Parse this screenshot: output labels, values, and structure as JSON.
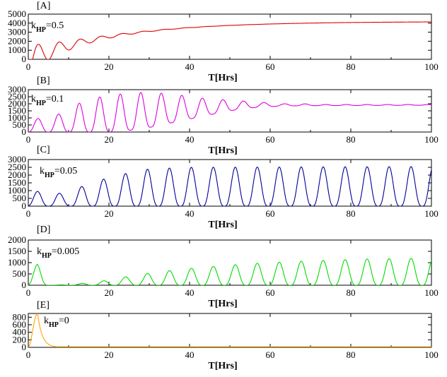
{
  "colors": {
    "A": "#dd0000",
    "B": "#dd00dd",
    "C": "#000099",
    "D": "#00dd00",
    "E": "#ffa500",
    "axis": "#000000",
    "background": "#ffffff"
  },
  "xlabel": "T[Hrs]",
  "chart_data": [
    {
      "type": "line",
      "panel_label": "[A]",
      "k_main": "k",
      "k_sub": "HP",
      "k_value": "=0.5",
      "color": "#dd0000",
      "xlim": [
        0,
        100
      ],
      "ylim": [
        0,
        5000
      ],
      "xticks": [
        0,
        20,
        40,
        60,
        80,
        100
      ],
      "yticks": [
        0,
        1000,
        2000,
        3000,
        4000,
        5000
      ],
      "xlabel": "T[Hrs]",
      "model": {
        "kind": "damped",
        "period": 5.2,
        "phase": 2.5,
        "ss": 4400,
        "ampl": 3400,
        "tdamp": 4.5,
        "rise": 22,
        "tmax": 100,
        "envdecay": 0
      },
      "series": [
        {
          "x": [
            0,
            2.5,
            4.5,
            7.5,
            10,
            13,
            16,
            20,
            30,
            40,
            60,
            80,
            100
          ],
          "y": [
            0,
            1200,
            300,
            2700,
            900,
            3300,
            2400,
            3500,
            4000,
            4250,
            4400,
            4450,
            4450
          ]
        }
      ]
    },
    {
      "type": "line",
      "panel_label": "[B]",
      "k_main": "k",
      "k_sub": "HP",
      "k_value": "=0.1",
      "color": "#dd00dd",
      "xlim": [
        0,
        100
      ],
      "ylim": [
        0,
        3000
      ],
      "xticks": [
        0,
        20,
        40,
        60,
        80,
        100
      ],
      "yticks": [
        0,
        500,
        1000,
        1500,
        2000,
        2500,
        3000
      ],
      "xlabel": "T[Hrs]",
      "model": {
        "kind": "osc",
        "period": 5.1,
        "phase": 2.4,
        "base": 0,
        "growFrom": 1,
        "peaks": [
          [
            2.4,
            950
          ],
          [
            8,
            1300
          ],
          [
            13,
            2100
          ],
          [
            18,
            2500
          ],
          [
            23,
            2700
          ],
          [
            28,
            2800
          ],
          [
            33,
            2750
          ],
          [
            38,
            2600
          ],
          [
            43,
            2400
          ],
          [
            48,
            2300
          ],
          [
            53,
            2200
          ],
          [
            58,
            2100
          ],
          [
            63,
            2000
          ],
          [
            68,
            2000
          ],
          [
            73,
            1950
          ],
          [
            100,
            1950
          ]
        ],
        "troughs": [
          [
            2,
            0
          ],
          [
            20,
            0
          ],
          [
            28,
            200
          ],
          [
            33,
            500
          ],
          [
            38,
            800
          ],
          [
            43,
            1100
          ],
          [
            48,
            1400
          ],
          [
            53,
            1650
          ],
          [
            58,
            1780
          ],
          [
            63,
            1840
          ],
          [
            68,
            1860
          ],
          [
            73,
            1870
          ],
          [
            100,
            1900
          ]
        ],
        "tmax": 100
      },
      "series": [
        {
          "x": [
            2.4,
            8,
            13,
            18,
            23,
            28,
            33,
            38,
            43,
            48,
            53,
            58,
            63,
            70,
            80,
            100
          ],
          "y": [
            950,
            1300,
            2100,
            2500,
            2700,
            2800,
            2750,
            2600,
            2400,
            2300,
            2200,
            2100,
            2000,
            2000,
            1950,
            1950
          ]
        }
      ]
    },
    {
      "type": "line",
      "panel_label": "[C]",
      "k_main": "k",
      "k_sub": "HP",
      "k_value": "=0.05",
      "color": "#000099",
      "xlim": [
        0,
        100
      ],
      "ylim": [
        0,
        3000
      ],
      "xticks": [
        0,
        20,
        40,
        60,
        80,
        100
      ],
      "yticks": [
        0,
        500,
        1000,
        1500,
        2000,
        2500,
        3000
      ],
      "xlabel": "T[Hrs]",
      "model": {
        "kind": "osc",
        "period": 5.45,
        "phase": 2.3,
        "base": 0,
        "peaks": [
          [
            2.3,
            950
          ],
          [
            9,
            800
          ],
          [
            14.5,
            1400
          ],
          [
            20,
            1850
          ],
          [
            25,
            2150
          ],
          [
            30,
            2400
          ],
          [
            35,
            2450
          ],
          [
            40,
            2500
          ],
          [
            100,
            2550
          ]
        ],
        "troughs": [
          [
            0,
            0
          ],
          [
            100,
            0
          ]
        ],
        "tmax": 100
      },
      "series": [
        {
          "x": [
            2.3,
            9,
            14.5,
            20,
            25,
            30,
            35,
            40,
            50,
            60,
            70,
            80,
            90,
            98
          ],
          "y": [
            950,
            800,
            1400,
            1850,
            2150,
            2400,
            2450,
            2500,
            2550,
            2550,
            2550,
            2550,
            2550,
            2550
          ]
        }
      ]
    },
    {
      "type": "line",
      "panel_label": "[D]",
      "k_main": "k",
      "k_sub": "HP",
      "k_value": "=0.005",
      "color": "#00dd00",
      "xlim": [
        0,
        100
      ],
      "ylim": [
        0,
        2000
      ],
      "xticks": [
        0,
        20,
        40,
        60,
        80,
        100
      ],
      "yticks": [
        0,
        500,
        1000,
        1500,
        2000
      ],
      "xlabel": "T[Hrs]",
      "model": {
        "kind": "osc",
        "period": 5.45,
        "phase": 2.3,
        "base": 0,
        "peaks": [
          [
            2.3,
            920
          ],
          [
            6,
            0
          ],
          [
            12,
            60
          ],
          [
            17,
            140
          ],
          [
            22.5,
            320
          ],
          [
            28,
            480
          ],
          [
            33,
            600
          ],
          [
            38.5,
            720
          ],
          [
            44,
            800
          ],
          [
            49,
            880
          ],
          [
            55,
            950
          ],
          [
            60,
            1000
          ],
          [
            66,
            1050
          ],
          [
            71,
            1080
          ],
          [
            77,
            1120
          ],
          [
            82,
            1150
          ],
          [
            88,
            1170
          ],
          [
            93,
            1180
          ],
          [
            98.5,
            1200
          ],
          [
            100,
            1200
          ]
        ],
        "troughs": [
          [
            0,
            0
          ],
          [
            100,
            0
          ]
        ],
        "tmax": 100
      },
      "series": [
        {
          "x": [
            2.3,
            12,
            17,
            22.5,
            28,
            33,
            38.5,
            44,
            49,
            55,
            60,
            66,
            71,
            77,
            82,
            88,
            93,
            98.5
          ],
          "y": [
            920,
            60,
            140,
            320,
            480,
            600,
            720,
            800,
            880,
            950,
            1000,
            1050,
            1080,
            1120,
            1150,
            1170,
            1180,
            1200
          ]
        }
      ]
    },
    {
      "type": "line",
      "panel_label": "[E]",
      "k_main": "k",
      "k_sub": "HP",
      "k_value": "=0",
      "color": "#ffa500",
      "xlim": [
        0,
        100
      ],
      "ylim": [
        0,
        900
      ],
      "xticks": [
        0,
        20,
        40,
        60,
        80,
        100
      ],
      "yticks": [
        0,
        200,
        400,
        600,
        800
      ],
      "xlabel": "T[Hrs]",
      "model": {
        "kind": "spike",
        "t0": 2.3,
        "peak": 900,
        "rise": 1.2,
        "fall": 1.6,
        "tail": 15,
        "tmax": 100
      },
      "series": [
        {
          "x": [
            0,
            1,
            2.3,
            3.5,
            5,
            10,
            20,
            40,
            60,
            80,
            100
          ],
          "y": [
            0,
            300,
            900,
            400,
            60,
            15,
            15,
            15,
            15,
            15,
            15
          ]
        }
      ]
    }
  ]
}
